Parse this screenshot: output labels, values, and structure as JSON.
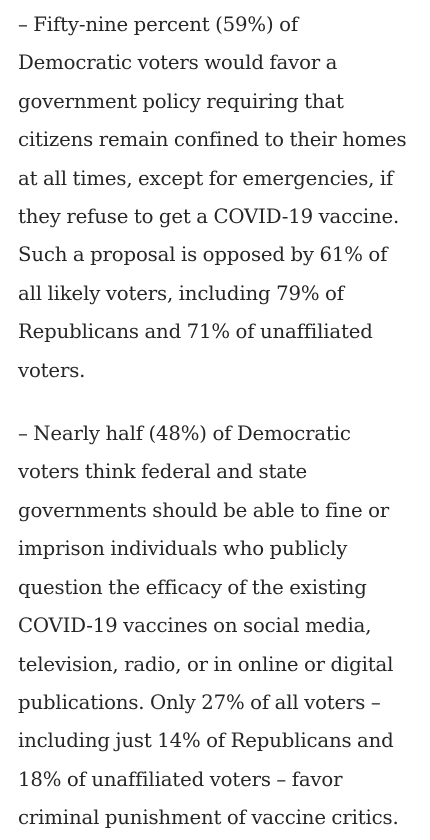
{
  "article": {
    "paragraphs": [
      "– Fifty-nine percent (59%) of Democratic voters would favor a government policy requiring that citizens remain confined to their homes at all times, except for emergencies, if they refuse to get a COVID-19 vaccine. Such a proposal is opposed by 61% of all likely voters, including 79% of Republicans and 71% of unaffiliated voters.",
      "– Nearly half (48%) of Democratic voters think federal and state governments should be able to fine or imprison individuals who publicly question the efficacy of the existing COVID-19 vaccines on social media, television, radio, or in online or digital publications. Only 27% of all voters – including just 14% of Republicans and 18% of unaffiliated voters – favor criminal punishment of vaccine critics."
    ]
  },
  "icons": {
    "corner_mark": "partial-icon-cutoff-top"
  },
  "colors": {
    "text": "#262626",
    "background": "#ffffff",
    "corner_mark": "#c9c9c9"
  }
}
